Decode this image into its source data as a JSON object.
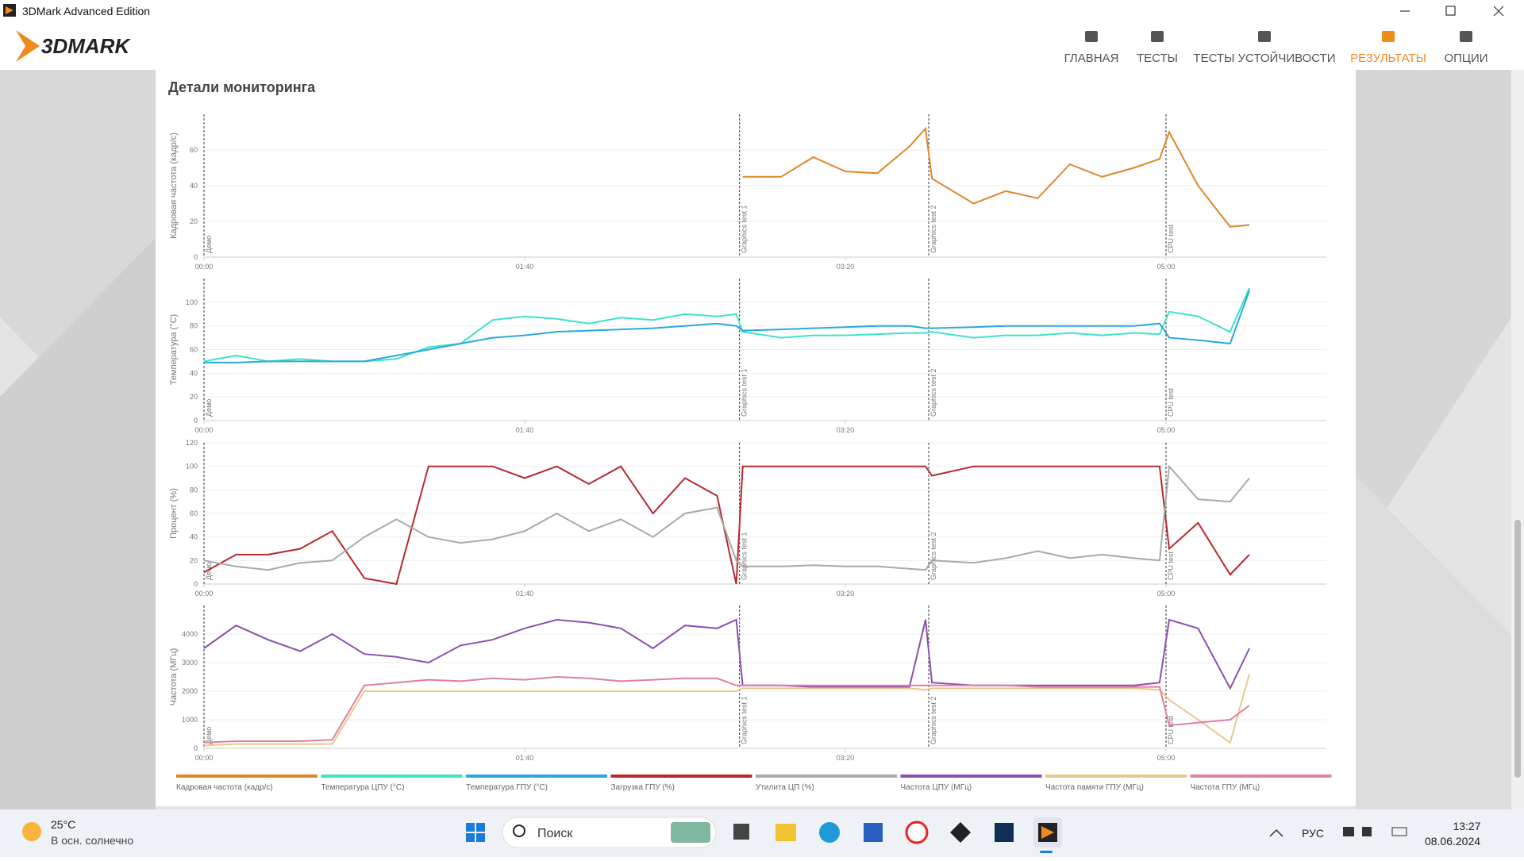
{
  "window": {
    "title": "3DMark Advanced Edition"
  },
  "nav": {
    "logo": "3DMARK",
    "items": [
      "ГЛАВНАЯ",
      "ТЕСТЫ",
      "ТЕСТЫ УСТОЙЧИВОСТИ",
      "РЕЗУЛЬТАТЫ",
      "ОПЦИИ"
    ],
    "active": 3
  },
  "section_title": "Детали мониторинга",
  "chart_data": [
    {
      "type": "line",
      "ylabel": "Кадровая частота (кадр/с)",
      "xlim": [
        0,
        350
      ],
      "ylim": [
        0,
        80
      ],
      "yticks": [
        0,
        20,
        40,
        60
      ],
      "grid": true,
      "xticks": [
        {
          "value": 0,
          "label": "00:00"
        },
        {
          "value": 100,
          "label": "01:40"
        },
        {
          "value": 200,
          "label": "03:20"
        },
        {
          "value": 300,
          "label": "05:00"
        }
      ],
      "markers": [
        {
          "x": 0,
          "label": "Демо"
        },
        {
          "x": 167,
          "label": "Graphics test 1"
        },
        {
          "x": 226,
          "label": "Graphics test 2"
        },
        {
          "x": 300,
          "label": "CPU test"
        }
      ],
      "x": [
        0,
        10,
        20,
        30,
        40,
        50,
        60,
        70,
        80,
        90,
        100,
        110,
        120,
        130,
        140,
        150,
        160,
        166,
        168,
        180,
        190,
        200,
        210,
        220,
        225,
        227,
        240,
        250,
        260,
        270,
        280,
        290,
        298,
        301,
        310,
        320,
        326
      ],
      "series": [
        {
          "name": "Кадровая частота (кадр/с)",
          "color": "#e0862a",
          "values": [
            null,
            null,
            null,
            null,
            null,
            null,
            null,
            null,
            null,
            null,
            null,
            null,
            null,
            null,
            null,
            null,
            null,
            null,
            45,
            45,
            56,
            48,
            47,
            62,
            72,
            44,
            30,
            37,
            33,
            52,
            45,
            50,
            55,
            70,
            40,
            17,
            18
          ]
        }
      ]
    },
    {
      "type": "line",
      "ylabel": "Температура (°C)",
      "xlim": [
        0,
        350
      ],
      "ylim": [
        0,
        120
      ],
      "yticks": [
        0,
        20,
        40,
        60,
        80,
        100
      ],
      "grid": true,
      "xticks": [
        {
          "value": 0,
          "label": "00:00"
        },
        {
          "value": 100,
          "label": "01:40"
        },
        {
          "value": 200,
          "label": "03:20"
        },
        {
          "value": 300,
          "label": "05:00"
        }
      ],
      "markers": [
        {
          "x": 0,
          "label": "Демо"
        },
        {
          "x": 167,
          "label": "Graphics test 1"
        },
        {
          "x": 226,
          "label": "Graphics test 2"
        },
        {
          "x": 300,
          "label": "CPU test"
        }
      ],
      "x": [
        0,
        10,
        20,
        30,
        40,
        50,
        60,
        70,
        80,
        90,
        100,
        110,
        120,
        130,
        140,
        150,
        160,
        166,
        168,
        180,
        190,
        200,
        210,
        220,
        225,
        227,
        240,
        250,
        260,
        270,
        280,
        290,
        298,
        301,
        310,
        320,
        326
      ],
      "series": [
        {
          "name": "Температура ЦПУ (°C)",
          "color": "#3de3c8",
          "values": [
            50,
            55,
            50,
            52,
            50,
            50,
            52,
            62,
            65,
            85,
            88,
            86,
            82,
            87,
            85,
            90,
            88,
            90,
            75,
            70,
            72,
            72,
            73,
            74,
            74,
            75,
            70,
            72,
            72,
            74,
            72,
            74,
            73,
            92,
            88,
            75,
            112
          ]
        },
        {
          "name": "Температура ГПУ (°C)",
          "color": "#2aa8e0",
          "values": [
            49,
            49,
            50,
            50,
            50,
            50,
            55,
            60,
            65,
            70,
            72,
            75,
            76,
            77,
            78,
            80,
            82,
            80,
            76,
            77,
            78,
            79,
            80,
            80,
            78,
            78,
            79,
            80,
            80,
            80,
            80,
            80,
            82,
            70,
            68,
            65,
            110
          ]
        }
      ]
    },
    {
      "type": "line",
      "ylabel": "Процент (%)",
      "xlim": [
        0,
        350
      ],
      "ylim": [
        0,
        120
      ],
      "yticks": [
        0,
        20,
        40,
        60,
        80,
        100,
        120
      ],
      "grid": true,
      "xticks": [
        {
          "value": 0,
          "label": "00:00"
        },
        {
          "value": 100,
          "label": "01:40"
        },
        {
          "value": 200,
          "label": "03:20"
        },
        {
          "value": 300,
          "label": "05:00"
        }
      ],
      "markers": [
        {
          "x": 0,
          "label": "Демо"
        },
        {
          "x": 167,
          "label": "Graphics test 1"
        },
        {
          "x": 226,
          "label": "Graphics test 2"
        },
        {
          "x": 300,
          "label": "CPU test"
        }
      ],
      "x": [
        0,
        10,
        20,
        30,
        40,
        50,
        60,
        70,
        80,
        90,
        100,
        110,
        120,
        130,
        140,
        150,
        160,
        166,
        168,
        180,
        190,
        200,
        210,
        220,
        225,
        227,
        240,
        250,
        260,
        270,
        280,
        290,
        298,
        301,
        310,
        320,
        326
      ],
      "series": [
        {
          "name": "Загрузка ГПУ (%)",
          "color": "#b8282e",
          "values": [
            10,
            25,
            25,
            30,
            45,
            5,
            0,
            100,
            100,
            100,
            90,
            100,
            85,
            100,
            60,
            90,
            75,
            0,
            100,
            100,
            100,
            100,
            100,
            100,
            100,
            92,
            100,
            100,
            100,
            100,
            100,
            100,
            100,
            30,
            52,
            8,
            25
          ]
        },
        {
          "name": "Утилита ЦП (%)",
          "color": "#a9a9a9",
          "values": [
            20,
            15,
            12,
            18,
            20,
            40,
            55,
            40,
            35,
            38,
            45,
            60,
            45,
            55,
            40,
            60,
            65,
            20,
            15,
            15,
            16,
            15,
            15,
            13,
            12,
            20,
            18,
            22,
            28,
            22,
            25,
            22,
            20,
            100,
            72,
            70,
            90
          ]
        }
      ]
    },
    {
      "type": "line",
      "ylabel": "Частота (МГц)",
      "xlim": [
        0,
        350
      ],
      "ylim": [
        0,
        5000
      ],
      "yticks": [
        0,
        1000,
        2000,
        3000,
        4000
      ],
      "grid": true,
      "xticks": [
        {
          "value": 0,
          "label": "00:00"
        },
        {
          "value": 100,
          "label": "01:40"
        },
        {
          "value": 200,
          "label": "03:20"
        },
        {
          "value": 300,
          "label": "05:00"
        }
      ],
      "markers": [
        {
          "x": 0,
          "label": "Демо"
        },
        {
          "x": 167,
          "label": "Graphics test 1"
        },
        {
          "x": 226,
          "label": "Graphics test 2"
        },
        {
          "x": 300,
          "label": "CPU test"
        }
      ],
      "x": [
        0,
        10,
        20,
        30,
        40,
        50,
        60,
        70,
        80,
        90,
        100,
        110,
        120,
        130,
        140,
        150,
        160,
        166,
        168,
        180,
        190,
        200,
        210,
        220,
        225,
        227,
        240,
        250,
        260,
        270,
        280,
        290,
        298,
        301,
        310,
        320,
        326
      ],
      "series": [
        {
          "name": "Частота ЦПУ (МГц)",
          "color": "#8b4fb0",
          "values": [
            3500,
            4300,
            3800,
            3400,
            4000,
            3300,
            3200,
            3000,
            3600,
            3800,
            4200,
            4500,
            4400,
            4200,
            3500,
            4300,
            4200,
            4500,
            2200,
            2200,
            2150,
            2150,
            2150,
            2150,
            4500,
            2300,
            2200,
            2200,
            2200,
            2200,
            2200,
            2200,
            2300,
            4500,
            4200,
            2100,
            3500
          ]
        },
        {
          "name": "Частота памяти ГПУ (МГц)",
          "color": "#e8c98a",
          "values": [
            100,
            150,
            150,
            150,
            150,
            2000,
            2000,
            2000,
            2000,
            2000,
            2000,
            2000,
            2000,
            2000,
            2000,
            2000,
            2000,
            2000,
            2100,
            2100,
            2100,
            2100,
            2100,
            2100,
            2050,
            2100,
            2100,
            2100,
            2100,
            2100,
            2100,
            2100,
            2050,
            1700,
            1000,
            200,
            2600
          ]
        },
        {
          "name": "Частота ГПУ (МГц)",
          "color": "#e07fa0",
          "values": [
            200,
            250,
            250,
            250,
            300,
            2200,
            2300,
            2400,
            2350,
            2450,
            2400,
            2500,
            2450,
            2350,
            2400,
            2450,
            2450,
            2200,
            2200,
            2200,
            2200,
            2200,
            2200,
            2200,
            2200,
            2200,
            2200,
            2200,
            2150,
            2150,
            2150,
            2150,
            2150,
            800,
            900,
            1000,
            1500
          ]
        }
      ]
    }
  ],
  "taskbar": {
    "temperature": "25°C",
    "weather": "В осн. солнечно",
    "search": "Поиск",
    "language": "РУС",
    "time": "13:27",
    "date": "08.06.2024"
  }
}
